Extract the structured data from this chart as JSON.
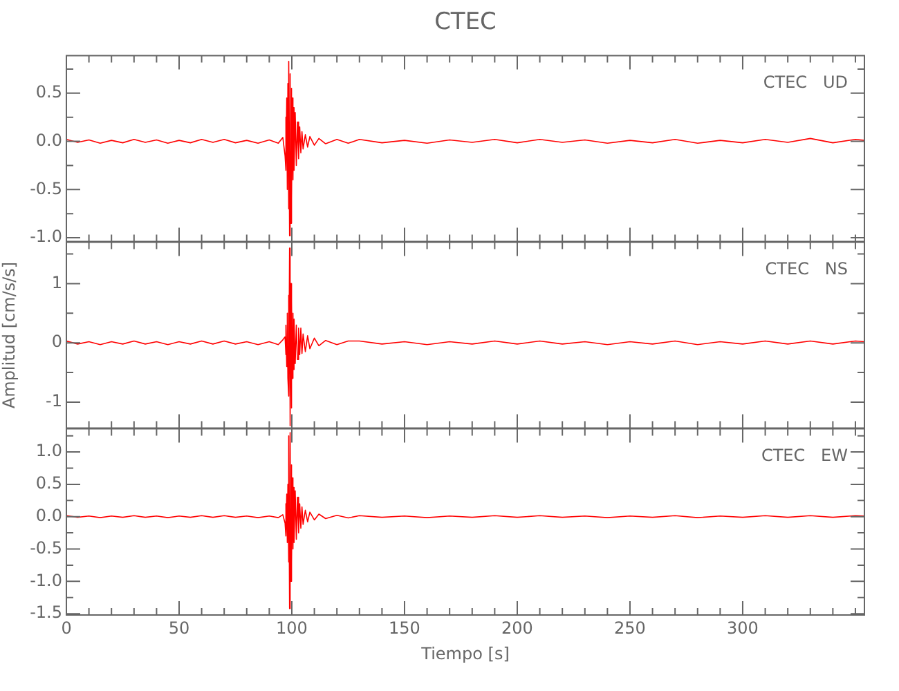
{
  "chart_data": [
    {
      "type": "line",
      "title": "CTEC",
      "annotations": [
        "CTEC   UD"
      ],
      "grid": false,
      "legend": false,
      "marker": "none",
      "tick_labels": "y",
      "x": [
        0,
        5,
        10,
        15,
        20,
        25,
        30,
        35,
        40,
        45,
        50,
        55,
        60,
        65,
        70,
        75,
        80,
        85,
        90,
        94,
        96,
        97,
        97.25,
        97.5,
        97.75,
        98,
        98.25,
        98.5,
        98.75,
        99,
        99.25,
        99.5,
        99.75,
        100,
        100.25,
        100.5,
        100.75,
        101,
        101.5,
        102,
        102.5,
        103,
        103.5,
        104,
        104.5,
        105,
        106,
        107,
        108,
        110,
        112,
        115,
        120,
        125,
        130,
        140,
        150,
        160,
        170,
        180,
        190,
        200,
        210,
        220,
        230,
        240,
        250,
        260,
        270,
        280,
        290,
        300,
        310,
        320,
        330,
        340,
        350,
        354
      ],
      "xlim": [
        0,
        354
      ],
      "xticks": [
        0,
        {
          "value": 10,
          "label": null
        },
        {
          "value": 20,
          "label": null
        },
        {
          "value": 30,
          "label": null
        },
        {
          "value": 40,
          "label": null
        },
        50,
        {
          "value": 60,
          "label": null
        },
        {
          "value": 70,
          "label": null
        },
        {
          "value": 80,
          "label": null
        },
        {
          "value": 90,
          "label": null
        },
        100,
        {
          "value": 110,
          "label": null
        },
        {
          "value": 120,
          "label": null
        },
        {
          "value": 130,
          "label": null
        },
        {
          "value": 140,
          "label": null
        },
        150,
        {
          "value": 160,
          "label": null
        },
        {
          "value": 170,
          "label": null
        },
        {
          "value": 180,
          "label": null
        },
        {
          "value": 190,
          "label": null
        },
        200,
        {
          "value": 210,
          "label": null
        },
        {
          "value": 220,
          "label": null
        },
        {
          "value": 230,
          "label": null
        },
        {
          "value": 240,
          "label": null
        },
        250,
        {
          "value": 260,
          "label": null
        },
        {
          "value": 270,
          "label": null
        },
        {
          "value": 280,
          "label": null
        },
        {
          "value": 290,
          "label": null
        },
        300,
        {
          "value": 310,
          "label": null
        },
        {
          "value": 320,
          "label": null
        },
        {
          "value": 330,
          "label": null
        },
        {
          "value": 340,
          "label": null
        },
        {
          "value": 350,
          "label": null
        }
      ],
      "ylim": [
        -1.04,
        0.89
      ],
      "yticks": [
        {
          "value": -1,
          "label": "-1.0"
        },
        {
          "value": -0.75,
          "label": null
        },
        -0.5,
        {
          "value": -0.25,
          "label": null
        },
        {
          "value": 0,
          "label": "0.0"
        },
        {
          "value": 0.25,
          "label": null
        },
        0.5,
        {
          "value": 0.75,
          "label": null
        }
      ],
      "series": [
        {
          "color": "#ff0000",
          "values": [
            0.02,
            -0.01,
            0.015,
            -0.02,
            0.01,
            -0.015,
            0.02,
            -0.01,
            0.015,
            -0.02,
            0.01,
            -0.015,
            0.02,
            -0.01,
            0.02,
            -0.015,
            0.01,
            -0.02,
            0.015,
            -0.02,
            0.04,
            -0.15,
            0.25,
            -0.3,
            0.45,
            -0.5,
            0.6,
            -0.7,
            0.83,
            -0.98,
            0.7,
            -0.85,
            0.55,
            -0.6,
            0.45,
            -0.4,
            0.35,
            -0.3,
            0.3,
            -0.25,
            0.2,
            -0.18,
            0.15,
            -0.12,
            0.1,
            -0.08,
            0.07,
            -0.06,
            0.05,
            -0.04,
            0.03,
            -0.025,
            0.02,
            -0.02,
            0.02,
            -0.015,
            0.01,
            -0.02,
            0.015,
            -0.01,
            0.02,
            -0.015,
            0.02,
            -0.01,
            0.015,
            -0.02,
            0.01,
            -0.015,
            0.02,
            -0.02,
            0.01,
            -0.015,
            0.02,
            -0.01,
            0.03,
            -0.015,
            0.02,
            0.01
          ]
        }
      ]
    },
    {
      "type": "line",
      "ylabel": "Amplitud [cm/s/s]",
      "annotations": [
        "CTEC   NS"
      ],
      "grid": false,
      "legend": false,
      "marker": "none",
      "tick_labels": "y",
      "x": [
        0,
        5,
        10,
        15,
        20,
        25,
        30,
        35,
        40,
        45,
        50,
        55,
        60,
        65,
        70,
        75,
        80,
        85,
        90,
        94,
        96,
        97,
        97.25,
        97.5,
        97.75,
        98,
        98.25,
        98.5,
        98.75,
        99,
        99.25,
        99.5,
        99.75,
        100,
        100.25,
        100.5,
        100.75,
        101,
        101.5,
        102,
        102.5,
        103,
        103.5,
        104,
        104.5,
        105,
        106,
        107,
        108,
        110,
        112,
        115,
        120,
        125,
        130,
        140,
        150,
        160,
        170,
        180,
        190,
        200,
        210,
        220,
        230,
        240,
        250,
        260,
        270,
        280,
        290,
        300,
        310,
        320,
        330,
        340,
        350,
        354
      ],
      "xlim": [
        0,
        354
      ],
      "xticks": [
        0,
        {
          "value": 10,
          "label": null
        },
        {
          "value": 20,
          "label": null
        },
        {
          "value": 30,
          "label": null
        },
        {
          "value": 40,
          "label": null
        },
        50,
        {
          "value": 60,
          "label": null
        },
        {
          "value": 70,
          "label": null
        },
        {
          "value": 80,
          "label": null
        },
        {
          "value": 90,
          "label": null
        },
        100,
        {
          "value": 110,
          "label": null
        },
        {
          "value": 120,
          "label": null
        },
        {
          "value": 130,
          "label": null
        },
        {
          "value": 140,
          "label": null
        },
        150,
        {
          "value": 160,
          "label": null
        },
        {
          "value": 170,
          "label": null
        },
        {
          "value": 180,
          "label": null
        },
        {
          "value": 190,
          "label": null
        },
        200,
        {
          "value": 210,
          "label": null
        },
        {
          "value": 220,
          "label": null
        },
        {
          "value": 230,
          "label": null
        },
        {
          "value": 240,
          "label": null
        },
        250,
        {
          "value": 260,
          "label": null
        },
        {
          "value": 270,
          "label": null
        },
        {
          "value": 280,
          "label": null
        },
        {
          "value": 290,
          "label": null
        },
        300,
        {
          "value": 310,
          "label": null
        },
        {
          "value": 320,
          "label": null
        },
        {
          "value": 330,
          "label": null
        },
        {
          "value": 340,
          "label": null
        },
        {
          "value": 350,
          "label": null
        }
      ],
      "ylim": [
        -1.44,
        1.7
      ],
      "yticks": [
        {
          "value": -1,
          "label": "-1"
        },
        {
          "value": -0.5,
          "label": null
        },
        0,
        {
          "value": 0.5,
          "label": null
        },
        1,
        {
          "value": 1.5,
          "label": null
        }
      ],
      "series": [
        {
          "color": "#ff0000",
          "values": [
            0.03,
            -0.02,
            0.02,
            -0.03,
            0.02,
            -0.02,
            0.03,
            -0.02,
            0.02,
            -0.03,
            0.02,
            -0.02,
            0.03,
            -0.02,
            0.03,
            -0.02,
            0.02,
            -0.03,
            0.02,
            -0.03,
            0.05,
            0.1,
            -0.2,
            0.3,
            -0.4,
            0.5,
            -0.6,
            0.8,
            -0.9,
            1.6,
            -1.4,
            1.0,
            -1.1,
            0.7,
            -0.6,
            0.5,
            -0.45,
            0.4,
            -0.35,
            0.3,
            -0.28,
            0.25,
            -0.2,
            0.25,
            -0.18,
            0.15,
            -0.15,
            0.12,
            -0.1,
            0.08,
            -0.05,
            0.04,
            -0.03,
            0.03,
            0.03,
            -0.02,
            0.02,
            -0.03,
            0.02,
            -0.02,
            0.03,
            -0.02,
            0.03,
            -0.02,
            0.02,
            -0.03,
            0.02,
            -0.02,
            0.03,
            -0.03,
            0.02,
            -0.02,
            0.03,
            -0.02,
            0.03,
            -0.02,
            0.03,
            0.02
          ]
        }
      ]
    },
    {
      "type": "line",
      "xlabel": "Tiempo [s]",
      "annotations": [
        "CTEC   EW"
      ],
      "grid": false,
      "legend": false,
      "marker": "none",
      "x": [
        0,
        5,
        10,
        15,
        20,
        25,
        30,
        35,
        40,
        45,
        50,
        55,
        60,
        65,
        70,
        75,
        80,
        85,
        90,
        94,
        96,
        97,
        97.25,
        97.5,
        97.75,
        98,
        98.25,
        98.5,
        98.75,
        99,
        99.25,
        99.5,
        99.75,
        100,
        100.25,
        100.5,
        100.75,
        101,
        101.5,
        102,
        102.5,
        103,
        103.5,
        104,
        104.5,
        105,
        106,
        107,
        108,
        110,
        112,
        115,
        120,
        125,
        130,
        140,
        150,
        160,
        170,
        180,
        190,
        200,
        210,
        220,
        230,
        240,
        250,
        260,
        270,
        280,
        290,
        300,
        310,
        320,
        330,
        340,
        350,
        354
      ],
      "xlim": [
        0,
        354
      ],
      "xticks": [
        0,
        {
          "value": 10,
          "label": null
        },
        {
          "value": 20,
          "label": null
        },
        {
          "value": 30,
          "label": null
        },
        {
          "value": 40,
          "label": null
        },
        50,
        {
          "value": 60,
          "label": null
        },
        {
          "value": 70,
          "label": null
        },
        {
          "value": 80,
          "label": null
        },
        {
          "value": 90,
          "label": null
        },
        100,
        {
          "value": 110,
          "label": null
        },
        {
          "value": 120,
          "label": null
        },
        {
          "value": 130,
          "label": null
        },
        {
          "value": 140,
          "label": null
        },
        150,
        {
          "value": 160,
          "label": null
        },
        {
          "value": 170,
          "label": null
        },
        {
          "value": 180,
          "label": null
        },
        {
          "value": 190,
          "label": null
        },
        200,
        {
          "value": 210,
          "label": null
        },
        {
          "value": 220,
          "label": null
        },
        {
          "value": 230,
          "label": null
        },
        {
          "value": 240,
          "label": null
        },
        250,
        {
          "value": 260,
          "label": null
        },
        {
          "value": 270,
          "label": null
        },
        {
          "value": 280,
          "label": null
        },
        {
          "value": 290,
          "label": null
        },
        300,
        {
          "value": 310,
          "label": null
        },
        {
          "value": 320,
          "label": null
        },
        {
          "value": 330,
          "label": null
        },
        {
          "value": 340,
          "label": null
        },
        {
          "value": 350,
          "label": null
        }
      ],
      "ylim": [
        -1.52,
        1.36
      ],
      "yticks": [
        -1.5,
        {
          "value": -1.25,
          "label": null
        },
        {
          "value": -1,
          "label": "-1.0"
        },
        {
          "value": -0.75,
          "label": null
        },
        -0.5,
        {
          "value": -0.25,
          "label": null
        },
        {
          "value": 0,
          "label": "0.0"
        },
        {
          "value": 0.25,
          "label": null
        },
        0.5,
        {
          "value": 0.75,
          "label": null
        },
        {
          "value": 1,
          "label": "1.0"
        },
        {
          "value": 1.25,
          "label": null
        }
      ],
      "series": [
        {
          "color": "#ff0000",
          "values": [
            0.015,
            -0.01,
            0.01,
            -0.015,
            0.01,
            -0.01,
            0.015,
            -0.01,
            0.01,
            -0.015,
            0.01,
            -0.01,
            0.015,
            -0.01,
            0.015,
            -0.01,
            0.01,
            -0.015,
            0.01,
            -0.015,
            0.03,
            -0.1,
            0.2,
            -0.3,
            0.35,
            -0.4,
            0.5,
            -0.7,
            1.25,
            -1.42,
            1.3,
            -1.0,
            0.8,
            -0.7,
            0.6,
            -0.5,
            0.45,
            -0.4,
            0.4,
            -0.35,
            0.3,
            -0.25,
            0.2,
            -0.18,
            0.15,
            -0.12,
            0.1,
            -0.08,
            0.07,
            -0.05,
            0.04,
            -0.03,
            0.02,
            -0.02,
            0.015,
            -0.01,
            0.01,
            -0.015,
            0.01,
            -0.01,
            0.015,
            -0.01,
            0.015,
            -0.01,
            0.01,
            -0.015,
            0.01,
            -0.01,
            0.015,
            -0.015,
            0.01,
            -0.01,
            0.015,
            -0.01,
            0.015,
            -0.01,
            0.015,
            0.01
          ]
        }
      ]
    }
  ]
}
